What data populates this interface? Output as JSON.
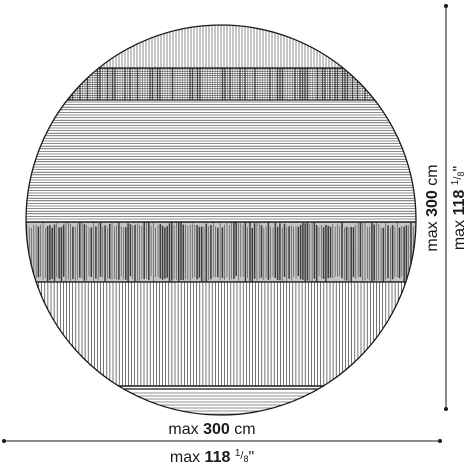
{
  "dimensions": {
    "width": {
      "metric_prefix": "max",
      "metric_value": "300",
      "metric_unit": "cm",
      "imperial_prefix": "max",
      "imperial_value": "118",
      "imperial_frac_num": "1",
      "imperial_frac_den": "8",
      "imperial_unit": "\""
    },
    "height": {
      "metric_prefix": "max",
      "metric_value": "300",
      "metric_unit": "cm",
      "imperial_prefix": "max",
      "imperial_value": "118",
      "imperial_frac_num": "1",
      "imperial_frac_den": "8",
      "imperial_unit": "\""
    }
  },
  "colors": {
    "line": "#1a1a1a",
    "dense": "#2a2a2a"
  }
}
